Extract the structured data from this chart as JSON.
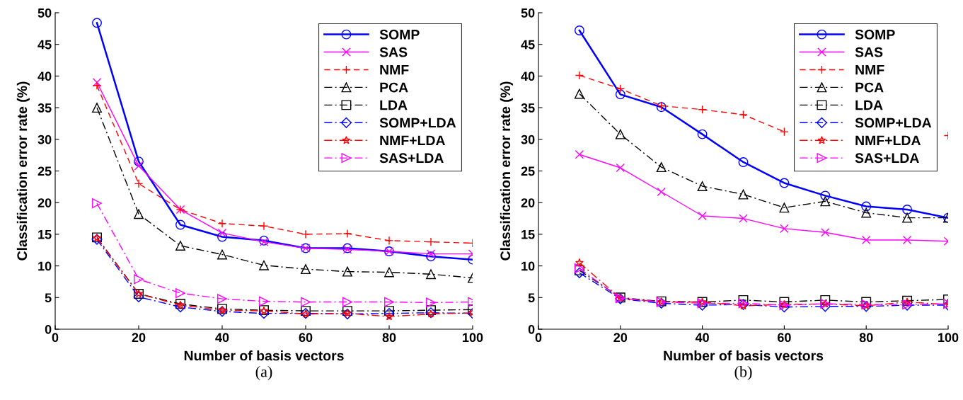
{
  "chart_data": [
    {
      "type": "line",
      "xlabel": "Number of basis vectors",
      "ylabel": "Classification error rate (%)",
      "annotations": [
        "(a)"
      ],
      "x": [
        10,
        20,
        30,
        40,
        50,
        60,
        70,
        80,
        90,
        100
      ],
      "xlim": [
        0,
        100
      ],
      "xticks": [
        0,
        20,
        40,
        60,
        80,
        100
      ],
      "ylim": [
        0,
        50
      ],
      "yticks": [
        0,
        5,
        10,
        15,
        20,
        25,
        30,
        35,
        40,
        45,
        50
      ],
      "grid": false,
      "legend": "top right",
      "series": [
        {
          "name": "SOMP",
          "color": "#0000ff",
          "marker": "circle",
          "line_style": "solid",
          "values": [
            48.4,
            26.5,
            16.5,
            14.6,
            14.0,
            12.8,
            12.8,
            12.3,
            11.5,
            11.0
          ]
        },
        {
          "name": "SAS",
          "color": "#ff00ff",
          "marker": "cross",
          "line_style": "solid",
          "values": [
            39.0,
            25.8,
            18.9,
            15.2,
            13.8,
            12.8,
            12.6,
            12.3,
            11.9,
            11.9
          ]
        },
        {
          "name": "NMF",
          "color": "#ff0000",
          "marker": "plus",
          "line_style": "dashed",
          "values": [
            38.5,
            23.0,
            18.9,
            16.7,
            16.3,
            15.0,
            15.1,
            14.0,
            13.8,
            13.6
          ]
        },
        {
          "name": "PCA",
          "color": "#000000",
          "marker": "triangle",
          "line_style": "dashdot",
          "values": [
            35.0,
            18.2,
            13.2,
            11.8,
            10.1,
            9.5,
            9.1,
            9.0,
            8.7,
            8.1
          ]
        },
        {
          "name": "LDA",
          "color": "#000000",
          "marker": "square",
          "line_style": "dashdot",
          "values": [
            14.5,
            5.6,
            4.0,
            3.2,
            3.0,
            2.9,
            2.9,
            2.9,
            3.0,
            3.1
          ]
        },
        {
          "name": "SOMP+LDA",
          "color": "#0000ff",
          "marker": "diamond",
          "line_style": "dashdot",
          "values": [
            14.2,
            5.1,
            3.5,
            2.8,
            2.5,
            2.5,
            2.4,
            2.5,
            2.6,
            2.5
          ]
        },
        {
          "name": "NMF+LDA",
          "color": "#ff0000",
          "marker": "star",
          "line_style": "dashdot",
          "values": [
            14.4,
            5.6,
            3.8,
            3.0,
            2.9,
            2.4,
            2.5,
            2.0,
            2.4,
            2.6
          ]
        },
        {
          "name": "SAS+LDA",
          "color": "#ff00ff",
          "marker": "triangle_right",
          "line_style": "dashdot",
          "values": [
            19.9,
            7.9,
            5.7,
            4.8,
            4.4,
            4.3,
            4.3,
            4.3,
            4.2,
            4.3
          ]
        }
      ]
    },
    {
      "type": "line",
      "xlabel": "Number of basis vectors",
      "ylabel": "Classification error rate (%)",
      "annotations": [
        "(b)"
      ],
      "x": [
        10,
        20,
        30,
        40,
        50,
        60,
        70,
        80,
        90,
        100
      ],
      "xlim": [
        0,
        100
      ],
      "xticks": [
        0,
        20,
        40,
        60,
        80,
        100
      ],
      "ylim": [
        0,
        50
      ],
      "yticks": [
        0,
        5,
        10,
        15,
        20,
        25,
        30,
        35,
        40,
        45,
        50
      ],
      "grid": false,
      "legend": "top right",
      "series": [
        {
          "name": "SOMP",
          "color": "#0000ff",
          "marker": "circle",
          "line_style": "solid",
          "values": [
            47.2,
            37.1,
            35.1,
            30.8,
            26.4,
            23.1,
            21.1,
            19.4,
            18.9,
            17.6
          ]
        },
        {
          "name": "SAS",
          "color": "#ff00ff",
          "marker": "cross",
          "line_style": "solid",
          "values": [
            27.6,
            25.5,
            21.7,
            17.9,
            17.5,
            15.9,
            15.3,
            14.1,
            14.1,
            13.9
          ]
        },
        {
          "name": "NMF",
          "color": "#ff0000",
          "marker": "plus",
          "line_style": "dashed",
          "values": [
            40.1,
            38.0,
            35.3,
            34.7,
            33.9,
            31.2,
            null,
            null,
            null,
            30.6
          ]
        },
        {
          "name": "PCA",
          "color": "#000000",
          "marker": "triangle",
          "line_style": "dashdot",
          "values": [
            37.2,
            30.8,
            25.6,
            22.6,
            21.3,
            19.2,
            20.2,
            18.4,
            17.6,
            17.6
          ]
        },
        {
          "name": "LDA",
          "color": "#000000",
          "marker": "square",
          "line_style": "dashdot",
          "values": [
            9.3,
            5.0,
            4.4,
            4.3,
            4.6,
            4.3,
            4.6,
            4.3,
            4.5,
            4.7
          ]
        },
        {
          "name": "SOMP+LDA",
          "color": "#0000ff",
          "marker": "diamond",
          "line_style": "dashdot",
          "values": [
            8.9,
            4.8,
            4.1,
            3.8,
            3.9,
            3.5,
            3.6,
            3.6,
            3.8,
            3.8
          ]
        },
        {
          "name": "NMF+LDA",
          "color": "#ff0000",
          "marker": "star",
          "line_style": "dashdot",
          "values": [
            10.5,
            4.9,
            4.3,
            4.3,
            3.7,
            3.9,
            4.0,
            3.7,
            4.3,
            3.9
          ]
        },
        {
          "name": "SAS+LDA",
          "color": "#ff00ff",
          "marker": "triangle_right",
          "line_style": "dashdot",
          "values": [
            9.6,
            4.9,
            4.3,
            4.1,
            4.1,
            3.8,
            4.0,
            3.9,
            3.9,
            4.0
          ]
        }
      ]
    }
  ]
}
